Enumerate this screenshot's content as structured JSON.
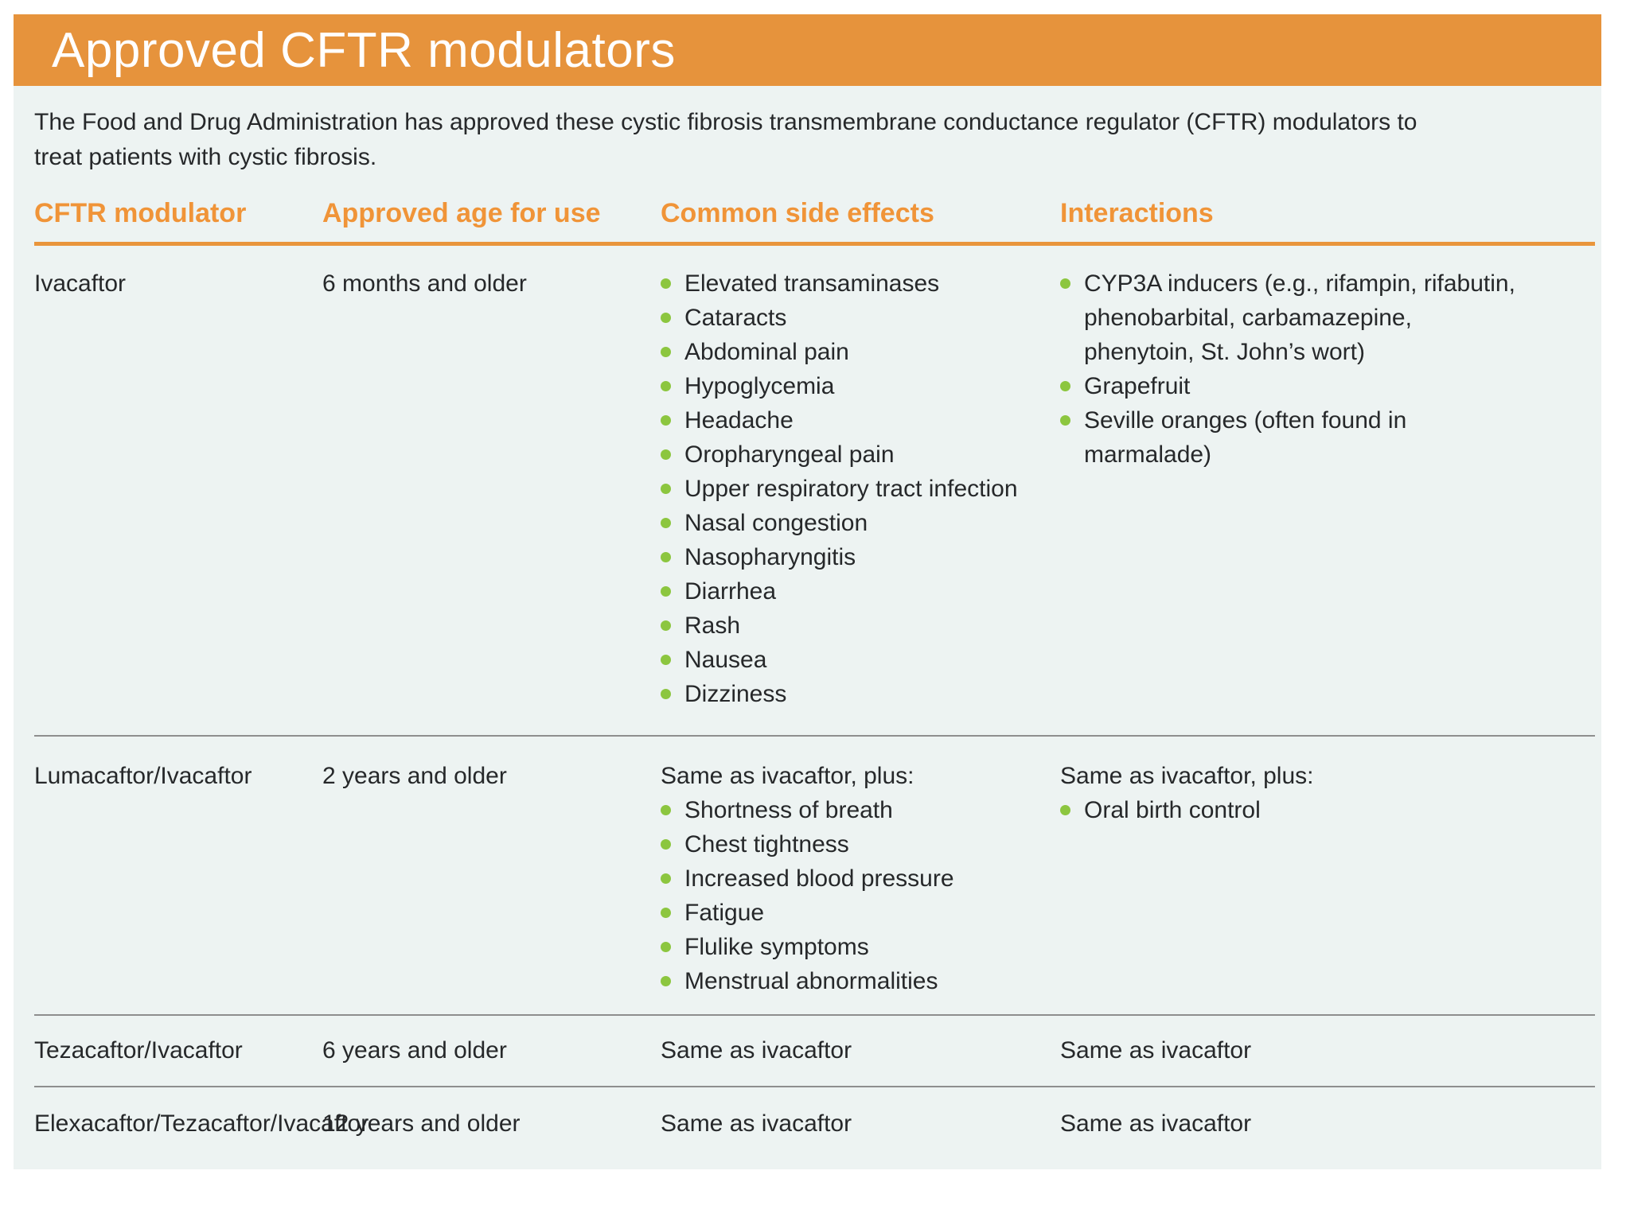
{
  "header": {
    "title": "Approved CFTR modulators"
  },
  "intro": "The Food and Drug Administration has approved these cystic fibrosis transmembrane conductance regulator (CFTR) modulators to treat patients with cystic fibrosis.",
  "table": {
    "columns": [
      "CFTR modulator",
      "Approved age for use",
      "Common side effects",
      "Interactions"
    ],
    "rows": [
      {
        "modulator": "Ivacaftor",
        "age": "6 months and older",
        "side_effects": [
          "Elevated transaminases",
          "Cataracts",
          "Abdominal pain",
          "Hypoglycemia",
          "Headache",
          "Oropharyngeal pain",
          "Upper respiratory tract infection",
          "Nasal congestion",
          "Nasopharyngitis",
          "Diarrhea",
          "Rash",
          "Nausea",
          "Dizziness"
        ],
        "interactions": [
          "CYP3A inducers (e.g., rifampin, rifabutin, phenobarbital, carbamazepine, phenytoin, St. John’s wort)",
          "Grapefruit",
          "Seville oranges (often found in marmalade)"
        ]
      },
      {
        "modulator": "Lumacaftor/Ivacaftor",
        "age": "2 years and older",
        "side_effects_intro": "Same as ivacaftor, plus:",
        "side_effects": [
          "Shortness of breath",
          "Chest tightness",
          "Increased blood pressure",
          "Fatigue",
          "Flulike symptoms",
          "Menstrual abnormalities"
        ],
        "interactions_intro": "Same as ivacaftor, plus:",
        "interactions": [
          "Oral birth control"
        ]
      },
      {
        "modulator": "Tezacaftor/Ivacaftor",
        "age": "6 years and older",
        "side_effects_text": "Same as ivacaftor",
        "interactions_text": "Same as ivacaftor"
      },
      {
        "modulator": "Elexacaftor/Tezacaftor/Ivacaftor",
        "age": "12 years and older",
        "side_effects_text": "Same as ivacaftor",
        "interactions_text": "Same as ivacaftor"
      }
    ]
  },
  "colors": {
    "title_bar_orange": "#e6933c",
    "heading_orange": "#f09438",
    "rule_orange": "#e9953c",
    "bullet_green": "#8cc63f",
    "panel_background": "#edf3f2",
    "body_text": "#26282a",
    "divider_gray": "#8e8e8e"
  }
}
